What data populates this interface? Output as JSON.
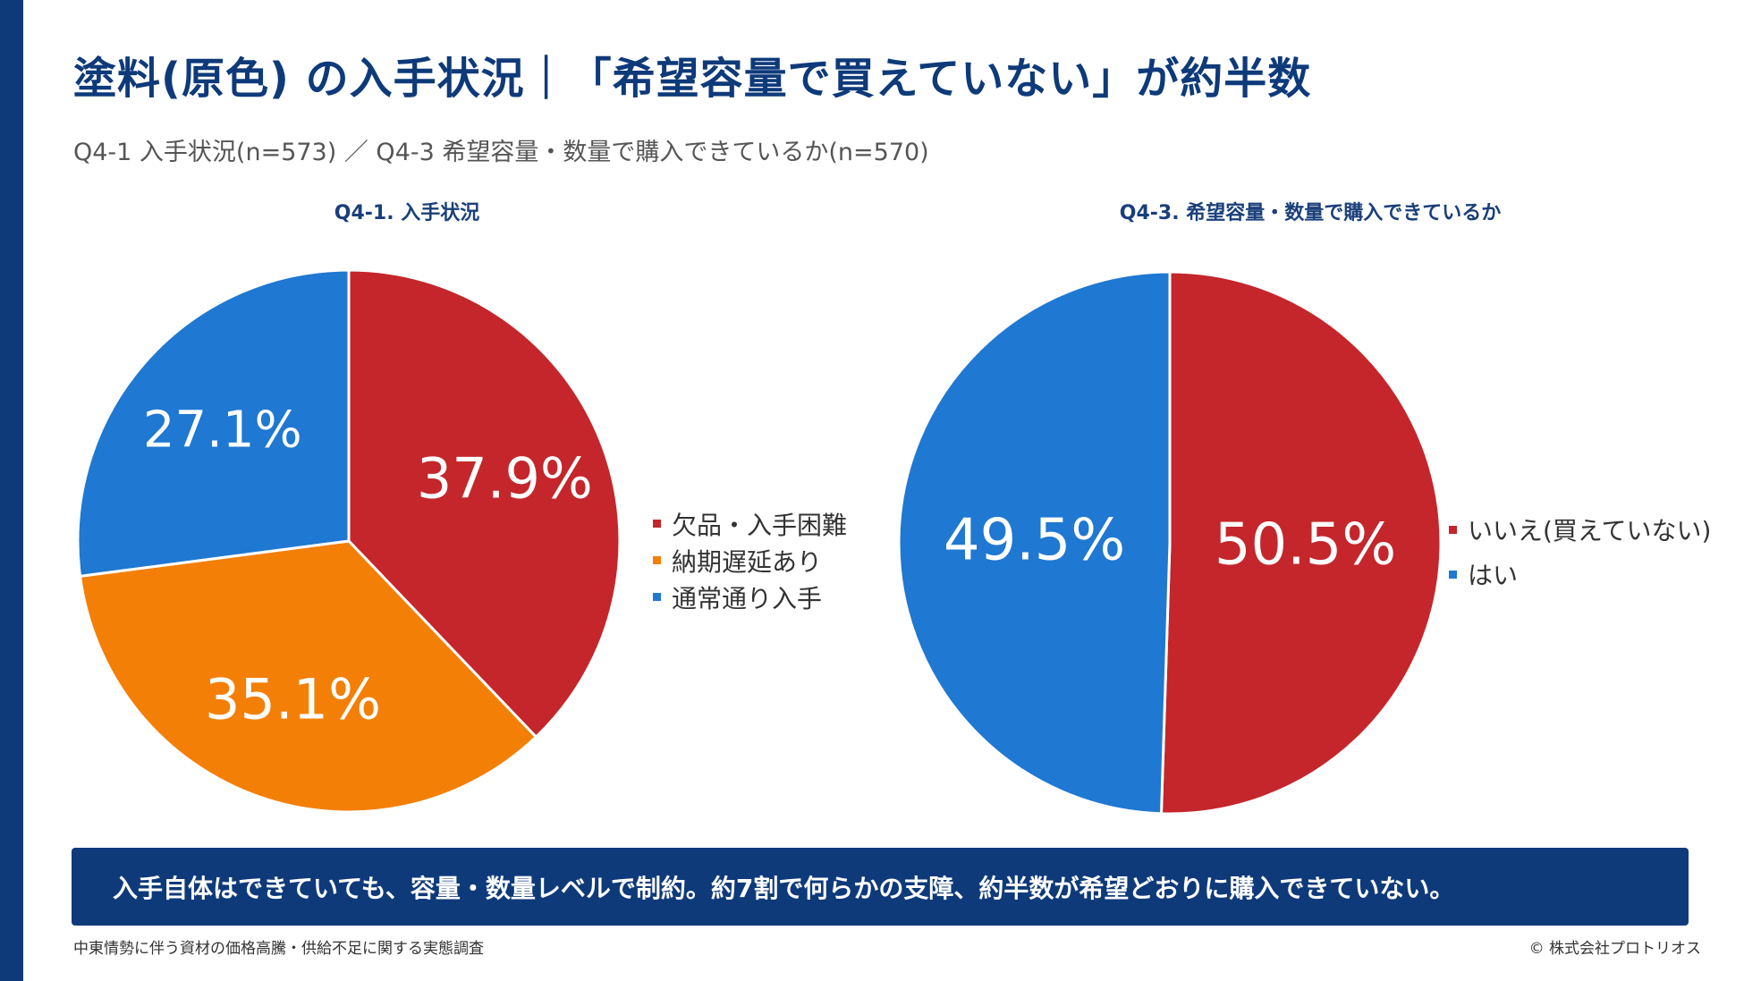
{
  "header": {
    "title": "塗料(原色) の入手状況｜「希望容量で買えていない」が約半数",
    "subtitle": "Q4-1 入手状況(n=573) ／ Q4-3 希望容量・数量で購入できているか(n=570)"
  },
  "chart_data": [
    {
      "type": "pie",
      "title": "Q4-1. 入手状況",
      "slices": [
        {
          "label": "欠品・入手困難",
          "value": 37.9,
          "display": "37.9%",
          "color": "#c4262b"
        },
        {
          "label": "納期遅延あり",
          "value": 35.1,
          "display": "35.1%",
          "color": "#f47f06"
        },
        {
          "label": "通常通り入手",
          "value": 27.1,
          "display": "27.1%",
          "color": "#1f78d1"
        }
      ],
      "legend_position": "right"
    },
    {
      "type": "pie",
      "title": "Q4-3. 希望容量・数量で購入できているか",
      "slices": [
        {
          "label": "いいえ(買えていない)",
          "value": 50.5,
          "display": "50.5%",
          "color": "#c4262b"
        },
        {
          "label": "はい",
          "value": 49.5,
          "display": "49.5%",
          "color": "#1f78d1"
        }
      ],
      "legend_position": "right"
    }
  ],
  "banner": {
    "text": "入手自体はできていても、容量・数量レベルで制約。約7割で何らかの支障、約半数が希望どおりに購入できていない。"
  },
  "footer": {
    "source": "中東情勢に伴う資材の価格高騰・供給不足に関する実態調査",
    "copyright": "© 株式会社プロトリオス"
  },
  "colors": {
    "brand": "#0e3a7a",
    "red": "#c4262b",
    "orange": "#f47f06",
    "blue": "#1f78d1"
  }
}
